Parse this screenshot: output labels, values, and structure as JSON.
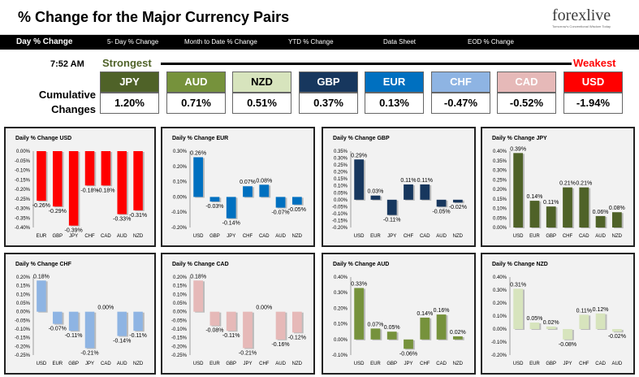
{
  "header": {
    "title": "% Change for the Major Currency Pairs",
    "logo": "forexlive",
    "logo_tagline": "Tomorrow's Conventional Wisdom Today"
  },
  "nav": {
    "tabs": [
      {
        "label": "Day % Change",
        "active": true
      },
      {
        "label": "5- Day % Change",
        "active": false
      },
      {
        "label": "Month to Date % Change",
        "active": false
      },
      {
        "label": "YTD % Change",
        "active": false
      },
      {
        "label": "Data Sheet",
        "active": false
      },
      {
        "label": "EOD % Change",
        "active": false
      }
    ]
  },
  "summary": {
    "time": "7:52 AM",
    "strongest_label": "Strongest",
    "weakest_label": "Weakest",
    "row_label": "Cumulative Changes",
    "currencies": [
      {
        "name": "JPY",
        "value": "1.20%",
        "bg": "#4f6228",
        "fg": "#ffffff"
      },
      {
        "name": "AUD",
        "value": "0.71%",
        "bg": "#76923c",
        "fg": "#ffffff"
      },
      {
        "name": "NZD",
        "value": "0.51%",
        "bg": "#d7e4bd",
        "fg": "#000000"
      },
      {
        "name": "GBP",
        "value": "0.37%",
        "bg": "#17375e",
        "fg": "#ffffff"
      },
      {
        "name": "EUR",
        "value": "0.13%",
        "bg": "#0070c0",
        "fg": "#ffffff"
      },
      {
        "name": "CHF",
        "value": "-0.47%",
        "bg": "#8eb4e3",
        "fg": "#ffffff"
      },
      {
        "name": "CAD",
        "value": "-0.52%",
        "bg": "#e6b9b8",
        "fg": "#ffffff"
      },
      {
        "name": "USD",
        "value": "-1.94%",
        "bg": "#ff0000",
        "fg": "#ffffff"
      }
    ]
  },
  "chart_data": [
    {
      "type": "bar",
      "title": "Daily % Change USD",
      "categories": [
        "EUR",
        "GBP",
        "JPY",
        "CHF",
        "CAD",
        "AUD",
        "NZD"
      ],
      "values": [
        -0.26,
        -0.29,
        -0.39,
        -0.18,
        -0.18,
        -0.33,
        -0.31
      ],
      "labels": [
        "-0.26%",
        "-0.29%",
        "-0.39%",
        "-0.18%",
        "-0.18%",
        "-0.33%",
        "-0.31%"
      ],
      "ylim": [
        -0.4,
        0.0
      ],
      "ticks": [
        0.0,
        -0.05,
        -0.1,
        -0.15,
        -0.2,
        -0.25,
        -0.3,
        -0.35,
        -0.4
      ],
      "tick_labels": [
        "0.00%",
        "-0.05%",
        "-0.10%",
        "-0.15%",
        "-0.20%",
        "-0.25%",
        "-0.30%",
        "-0.35%",
        "-0.40%"
      ],
      "color": "#ff0000",
      "grid": false
    },
    {
      "type": "bar",
      "title": "Daily % Change EUR",
      "categories": [
        "USD",
        "GBP",
        "JPY",
        "CHF",
        "CAD",
        "AUD",
        "NZD"
      ],
      "values": [
        0.26,
        -0.03,
        -0.14,
        0.07,
        0.08,
        -0.07,
        -0.05
      ],
      "labels": [
        "0.26%",
        "-0.03%",
        "-0.14%",
        "0.07%",
        "0.08%",
        "-0.07%",
        "-0.05%"
      ],
      "ylim": [
        -0.2,
        0.3
      ],
      "ticks": [
        0.3,
        0.2,
        0.1,
        0.0,
        -0.1,
        -0.2
      ],
      "tick_labels": [
        "0.30%",
        "0.20%",
        "0.10%",
        "0.00%",
        "-0.10%",
        "-0.20%"
      ],
      "color": "#0070c0",
      "grid": false
    },
    {
      "type": "bar",
      "title": "Daily % Change GBP",
      "categories": [
        "USD",
        "EUR",
        "JPY",
        "CHF",
        "CAD",
        "AUD",
        "NZD"
      ],
      "values": [
        0.29,
        0.03,
        -0.11,
        0.11,
        0.11,
        -0.05,
        -0.02
      ],
      "labels": [
        "0.29%",
        "0.03%",
        "-0.11%",
        "0.11%",
        "0.11%",
        "-0.05%",
        "-0.02%"
      ],
      "ylim": [
        -0.2,
        0.35
      ],
      "ticks": [
        0.35,
        0.3,
        0.25,
        0.2,
        0.15,
        0.1,
        0.05,
        0.0,
        -0.05,
        -0.1,
        -0.15,
        -0.2
      ],
      "tick_labels": [
        "0.35%",
        "0.30%",
        "0.25%",
        "0.20%",
        "0.15%",
        "0.10%",
        "0.05%",
        "0.00%",
        "-0.05%",
        "-0.10%",
        "-0.15%",
        "-0.20%"
      ],
      "color": "#17375e",
      "grid": false
    },
    {
      "type": "bar",
      "title": "Daily % Change JPY",
      "categories": [
        "USD",
        "EUR",
        "GBP",
        "CHF",
        "CAD",
        "AUD",
        "NZD"
      ],
      "values": [
        0.39,
        0.14,
        0.11,
        0.21,
        0.21,
        0.06,
        0.08
      ],
      "labels": [
        "0.39%",
        "0.14%",
        "0.11%",
        "0.21%",
        "0.21%",
        "0.06%",
        "0.08%"
      ],
      "ylim": [
        0.0,
        0.4
      ],
      "ticks": [
        0.4,
        0.35,
        0.3,
        0.25,
        0.2,
        0.15,
        0.1,
        0.05,
        0.0
      ],
      "tick_labels": [
        "0.40%",
        "0.35%",
        "0.30%",
        "0.25%",
        "0.20%",
        "0.15%",
        "0.10%",
        "0.05%",
        "0.00%"
      ],
      "color": "#4f6228",
      "grid": false
    },
    {
      "type": "bar",
      "title": "Daily % Change CHF",
      "categories": [
        "USD",
        "EUR",
        "GBP",
        "JPY",
        "CAD",
        "AUD",
        "NZD"
      ],
      "values": [
        0.18,
        -0.07,
        -0.11,
        -0.21,
        0.0,
        -0.14,
        -0.11
      ],
      "labels": [
        "0.18%",
        "-0.07%",
        "-0.11%",
        "-0.21%",
        "0.00%",
        "-0.14%",
        "-0.11%"
      ],
      "ylim": [
        -0.25,
        0.2
      ],
      "ticks": [
        0.2,
        0.15,
        0.1,
        0.05,
        0.0,
        -0.05,
        -0.1,
        -0.15,
        -0.2,
        -0.25
      ],
      "tick_labels": [
        "0.20%",
        "0.15%",
        "0.10%",
        "0.05%",
        "0.00%",
        "-0.05%",
        "-0.10%",
        "-0.15%",
        "-0.20%",
        "-0.25%"
      ],
      "color": "#8eb4e3",
      "grid": false
    },
    {
      "type": "bar",
      "title": "Daily % Change CAD",
      "categories": [
        "USD",
        "EUR",
        "GBP",
        "JPY",
        "CHF",
        "AUD",
        "NZD"
      ],
      "values": [
        0.18,
        -0.08,
        -0.11,
        -0.21,
        0.0,
        -0.16,
        -0.12
      ],
      "labels": [
        "0.18%",
        "-0.08%",
        "-0.11%",
        "-0.21%",
        "0.00%",
        "-0.16%",
        "-0.12%"
      ],
      "ylim": [
        -0.25,
        0.2
      ],
      "ticks": [
        0.2,
        0.15,
        0.1,
        0.05,
        0.0,
        -0.05,
        -0.1,
        -0.15,
        -0.2,
        -0.25
      ],
      "tick_labels": [
        "0.20%",
        "0.15%",
        "0.10%",
        "0.05%",
        "0.00%",
        "-0.05%",
        "-0.10%",
        "-0.15%",
        "-0.20%",
        "-0.25%"
      ],
      "color": "#e6b9b8",
      "grid": false
    },
    {
      "type": "bar",
      "title": "Daily % Change AUD",
      "categories": [
        "USD",
        "EUR",
        "GBP",
        "JPY",
        "CHF",
        "CAD",
        "NZD"
      ],
      "values": [
        0.33,
        0.07,
        0.05,
        -0.06,
        0.14,
        0.16,
        0.02
      ],
      "labels": [
        "0.33%",
        "0.07%",
        "0.05%",
        "-0.06%",
        "0.14%",
        "0.16%",
        "0.02%"
      ],
      "ylim": [
        -0.1,
        0.4
      ],
      "ticks": [
        0.4,
        0.3,
        0.2,
        0.1,
        0.0,
        -0.1
      ],
      "tick_labels": [
        "0.40%",
        "0.30%",
        "0.20%",
        "0.10%",
        "0.00%",
        "-0.10%"
      ],
      "color": "#76923c",
      "grid": false
    },
    {
      "type": "bar",
      "title": "Daily % Change NZD",
      "categories": [
        "USD",
        "EUR",
        "GBP",
        "JPY",
        "CHF",
        "CAD",
        "AUD"
      ],
      "values": [
        0.31,
        0.05,
        0.02,
        -0.08,
        0.11,
        0.12,
        -0.02
      ],
      "labels": [
        "0.31%",
        "0.05%",
        "0.02%",
        "-0.08%",
        "0.11%",
        "0.12%",
        "-0.02%"
      ],
      "ylim": [
        -0.2,
        0.4
      ],
      "ticks": [
        0.4,
        0.3,
        0.2,
        0.1,
        0.0,
        -0.1,
        -0.2
      ],
      "tick_labels": [
        "0.40%",
        "0.30%",
        "0.20%",
        "0.10%",
        "0.00%",
        "-0.10%",
        "-0.20%"
      ],
      "color": "#d7e4bd",
      "grid": false
    }
  ]
}
